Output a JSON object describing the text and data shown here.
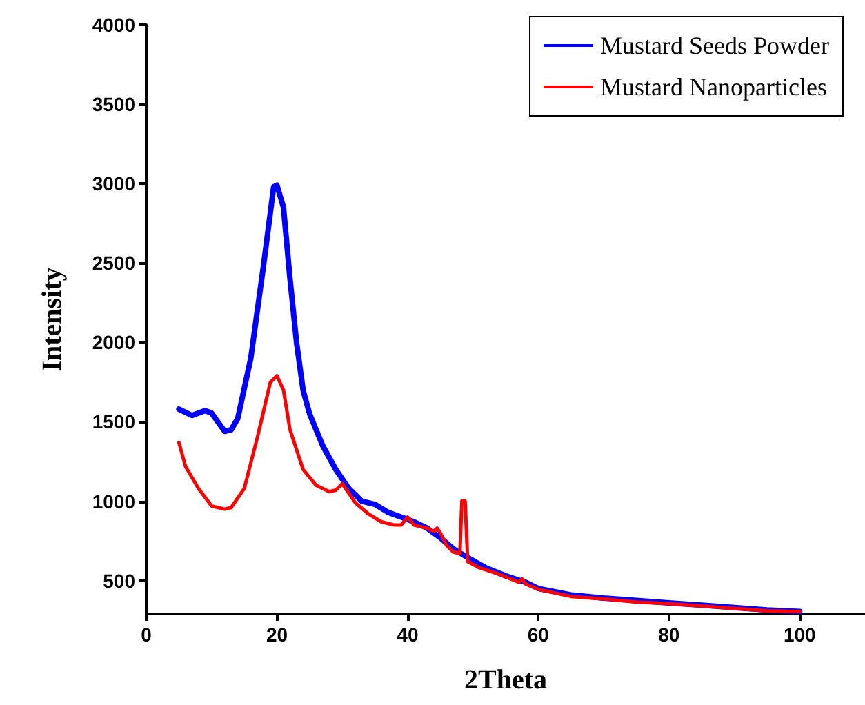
{
  "chart_data": {
    "type": "line",
    "xlabel": "2Theta",
    "ylabel": "Intensity",
    "xlim": [
      0,
      110
    ],
    "ylim": [
      290,
      4000
    ],
    "xticks": [
      0,
      20,
      40,
      60,
      80,
      100
    ],
    "yticks": [
      500,
      1000,
      1500,
      2000,
      2500,
      3000,
      3500,
      4000
    ],
    "grid": false,
    "legend": "top right",
    "marker": "none",
    "line_style": "solid",
    "series": [
      {
        "name": "Mustard Seeds Powder",
        "color": "#0000ff",
        "x": [
          5,
          7,
          9,
          10,
          12,
          13,
          14,
          16,
          18,
          19.5,
          20,
          21,
          22,
          23,
          24,
          25,
          27,
          29,
          31,
          33,
          35,
          37,
          39,
          41,
          43,
          45,
          47,
          49,
          52,
          55,
          58,
          60,
          65,
          70,
          75,
          80,
          85,
          90,
          95,
          100
        ],
        "values": [
          1580,
          1540,
          1570,
          1555,
          1440,
          1450,
          1520,
          1900,
          2500,
          2980,
          2990,
          2850,
          2400,
          2000,
          1700,
          1550,
          1350,
          1200,
          1080,
          1000,
          980,
          930,
          900,
          870,
          830,
          770,
          700,
          650,
          580,
          530,
          490,
          450,
          410,
          390,
          375,
          360,
          345,
          330,
          315,
          305
        ]
      },
      {
        "name": "Mustard Nanoparticles",
        "color": "#ff0000",
        "x": [
          5,
          6,
          8,
          10,
          12,
          13,
          15,
          17,
          19,
          20,
          21,
          22,
          24,
          26,
          28,
          29,
          30,
          31,
          32,
          34,
          36,
          38,
          39,
          40,
          41,
          43,
          44,
          44.5,
          45,
          46,
          47,
          48,
          48.3,
          48.8,
          49.2,
          51,
          54,
          57,
          57.5,
          58,
          60,
          65,
          70,
          75,
          80,
          85,
          90,
          95,
          100
        ],
        "values": [
          1370,
          1220,
          1080,
          970,
          950,
          960,
          1080,
          1400,
          1750,
          1790,
          1700,
          1450,
          1200,
          1100,
          1060,
          1070,
          1110,
          1050,
          990,
          920,
          870,
          850,
          850,
          900,
          850,
          830,
          810,
          830,
          800,
          720,
          680,
          670,
          1000,
          1000,
          620,
          580,
          540,
          490,
          510,
          480,
          445,
          400,
          385,
          365,
          355,
          340,
          325,
          310,
          305
        ]
      }
    ]
  }
}
